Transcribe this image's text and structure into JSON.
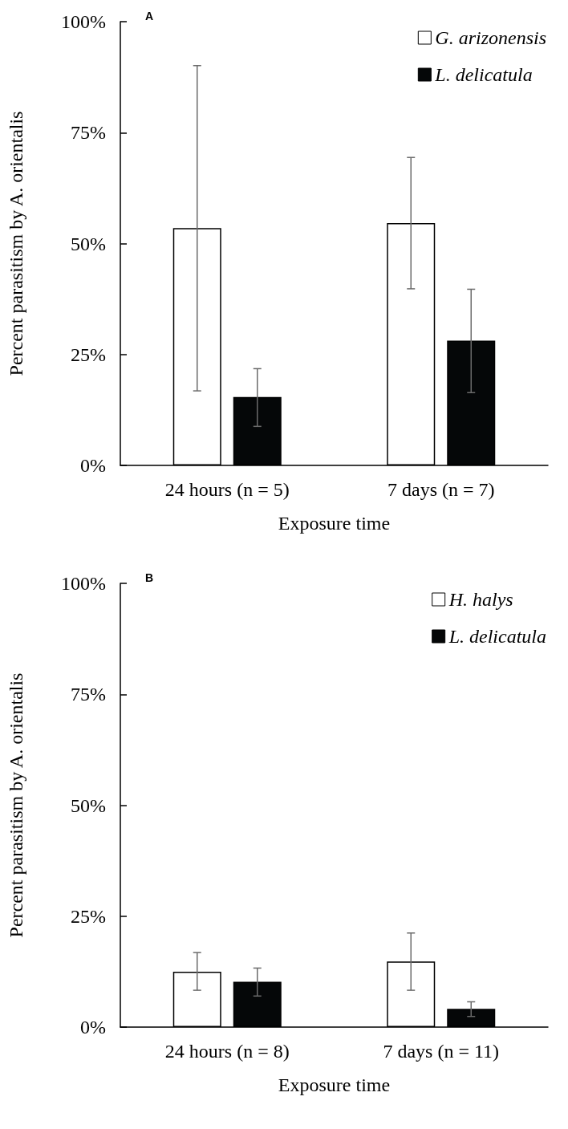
{
  "chart_data": [
    {
      "type": "bar",
      "title": "A",
      "xlabel": "Exposure time",
      "ylabel": "Percent parasitism by A. orientalis",
      "categories": [
        "24 hours (n = 5)",
        "7 days (n = 7)"
      ],
      "series": [
        {
          "name": "G. arizonensis",
          "color": "#ffffff",
          "values": [
            53.5,
            54.6
          ],
          "errors": [
            [
              16.8,
              90.1
            ],
            [
              39.8,
              69.4
            ]
          ]
        },
        {
          "name": "L. delicatula",
          "color": "#050708",
          "values": [
            15.4,
            28.1
          ],
          "errors": [
            [
              8.8,
              21.8
            ],
            [
              16.4,
              39.7
            ]
          ]
        }
      ],
      "ylim": [
        0,
        100
      ],
      "yticks": [
        {
          "value": 0,
          "label": "0%"
        },
        {
          "value": 25,
          "label": "25%"
        },
        {
          "value": 50,
          "label": "50%"
        },
        {
          "value": 75,
          "label": "75%"
        },
        {
          "value": 100,
          "label": "100%"
        }
      ],
      "grid": false,
      "legend": "top right"
    },
    {
      "type": "bar",
      "title": "B",
      "xlabel": "Exposure time",
      "ylabel": "Percent parasitism by A. orientalis",
      "categories": [
        "24 hours (n = 8)",
        "7 days (n = 11)"
      ],
      "series": [
        {
          "name": "H. halys",
          "color": "#ffffff",
          "values": [
            12.5,
            14.8
          ],
          "errors": [
            [
              8.3,
              16.8
            ],
            [
              8.3,
              21.2
            ]
          ]
        },
        {
          "name": "L. delicatula",
          "color": "#050708",
          "values": [
            10.2,
            4.1
          ],
          "errors": [
            [
              7.0,
              13.3
            ],
            [
              2.4,
              5.7
            ]
          ]
        }
      ],
      "ylim": [
        0,
        100
      ],
      "yticks": [
        {
          "value": 0,
          "label": "0%"
        },
        {
          "value": 25,
          "label": "25%"
        },
        {
          "value": 50,
          "label": "50%"
        },
        {
          "value": 75,
          "label": "75%"
        },
        {
          "value": 100,
          "label": "100%"
        }
      ],
      "grid": false,
      "legend": "top right"
    }
  ]
}
